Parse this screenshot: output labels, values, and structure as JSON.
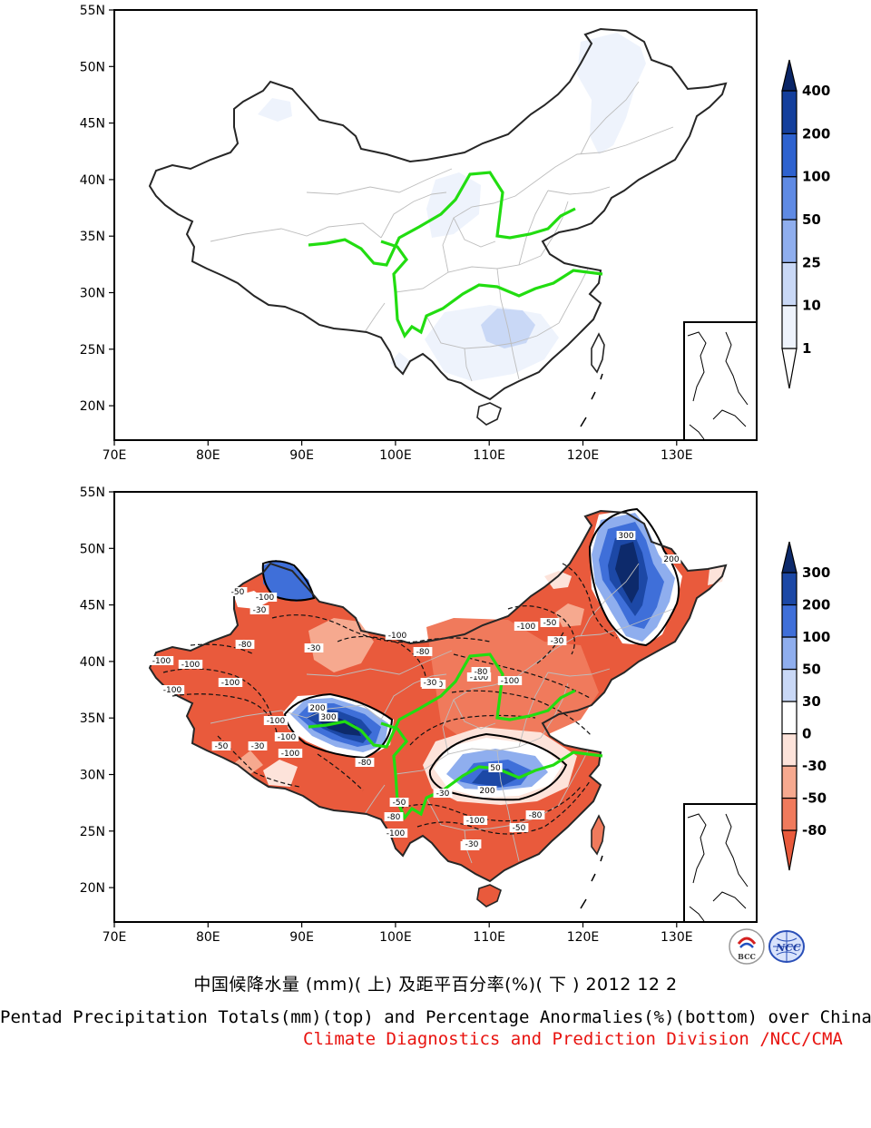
{
  "figure": {
    "caption_cn": "中国候降水量 (mm)( 上) 及距平百分率(%)( 下 ) 2012 12 2",
    "caption_en": "Pentad Precipitation Totals(mm)(top) and Percentage Anormalies(%)(bottom) over China",
    "credit": "Climate Diagnostics and Prediction Division /NCC/CMA",
    "logos": [
      {
        "name": "bcc-logo",
        "text": "BCC"
      },
      {
        "name": "ncc-logo",
        "text": "NCC"
      }
    ]
  },
  "axes": {
    "lat_labels": [
      "55N",
      "50N",
      "45N",
      "40N",
      "35N",
      "30N",
      "25N",
      "20N"
    ],
    "lon_labels": [
      "70E",
      "80E",
      "90E",
      "100E",
      "110E",
      "120E",
      "130E"
    ]
  },
  "top_map": {
    "field": "precipitation total (mm)",
    "colorbar_labels": [
      "400",
      "200",
      "100",
      "50",
      "25",
      "10",
      "1"
    ],
    "colors": [
      "#ffffff",
      "#eef3fc",
      "#c9d8f6",
      "#8faeee",
      "#5f8ae4",
      "#2e62cf",
      "#143f9c",
      "#0a2566"
    ]
  },
  "bottom_map": {
    "field": "precipitation anomaly percentage (%)",
    "colorbar_labels": [
      "300",
      "200",
      "100",
      "50",
      "30",
      "0",
      "-30",
      "-50",
      "-80"
    ],
    "colors": [
      "#e95a3c",
      "#f07a5c",
      "#f6a98f",
      "#fde3da",
      "#ffffff",
      "#c9d8f6",
      "#8faeee",
      "#3f6fd9",
      "#1c48a6",
      "#0d2a6b"
    ],
    "contour_labels": [
      {
        "text": "-100"
      },
      {
        "text": "-100"
      },
      {
        "text": "-100"
      },
      {
        "text": "-100"
      },
      {
        "text": "-100"
      },
      {
        "text": "-50"
      },
      {
        "text": "-30"
      },
      {
        "text": "-80"
      },
      {
        "text": "-100"
      },
      {
        "text": "-50"
      },
      {
        "text": "-30"
      },
      {
        "text": "-100"
      },
      {
        "text": "-100"
      },
      {
        "text": "-80"
      },
      {
        "text": "-30"
      },
      {
        "text": "300"
      },
      {
        "text": "200"
      },
      {
        "text": "200"
      },
      {
        "text": "300"
      },
      {
        "text": "-100"
      },
      {
        "text": "-50"
      },
      {
        "text": "-30"
      },
      {
        "text": "-100"
      },
      {
        "text": "-80"
      },
      {
        "text": "-100"
      },
      {
        "text": "-100"
      },
      {
        "text": "-80"
      },
      {
        "text": "-100"
      },
      {
        "text": "-30"
      },
      {
        "text": "-100"
      },
      {
        "text": "-80"
      },
      {
        "text": "-50"
      },
      {
        "text": "-30"
      },
      {
        "text": "200"
      },
      {
        "text": "50"
      },
      {
        "text": "-30"
      },
      {
        "text": "-30"
      },
      {
        "text": "-50"
      },
      {
        "text": "-80"
      },
      {
        "text": "-100"
      }
    ]
  }
}
